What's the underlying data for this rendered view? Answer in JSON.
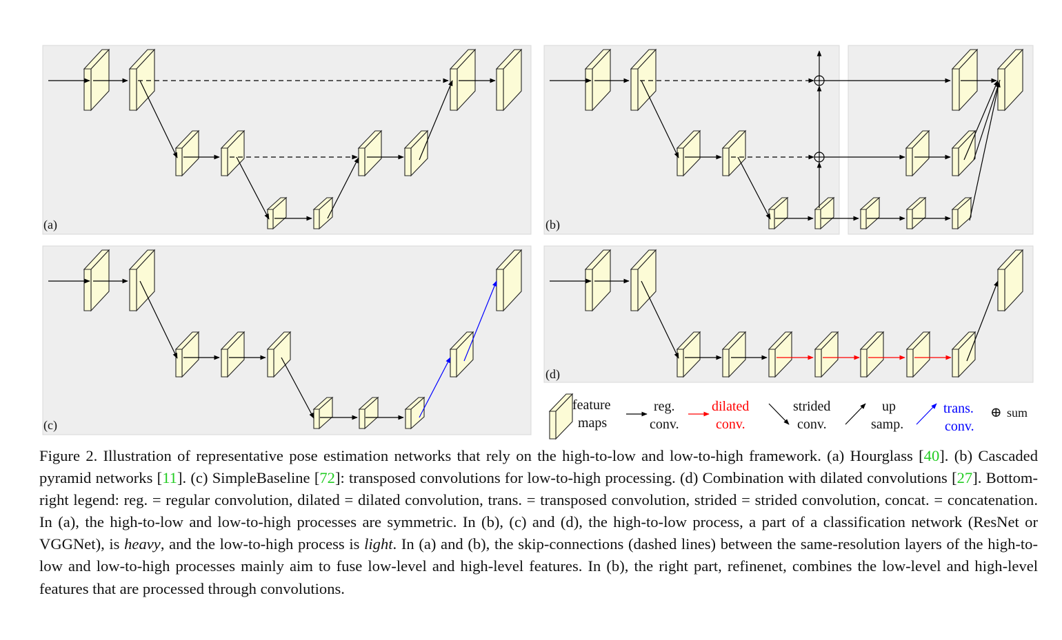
{
  "panels": [
    {
      "label": "(a)"
    },
    {
      "label": "(b)"
    },
    {
      "label": "(c)"
    },
    {
      "label": "(d)"
    }
  ],
  "legend": {
    "feature_maps": [
      "feature",
      "maps"
    ],
    "reg_conv": [
      "reg.",
      "conv."
    ],
    "dilated_conv": [
      "dilated",
      "conv."
    ],
    "strided_conv": [
      "strided",
      "conv."
    ],
    "up_samp": [
      "up",
      "samp."
    ],
    "trans_conv": [
      "trans.",
      "conv."
    ],
    "sum": "sum",
    "sum_symbol": "⊕"
  },
  "colors": {
    "panel_bg": "#eeeeee",
    "feature_map_fill": "#fcfbd6",
    "dilated": "#ff0000",
    "trans": "#0000ff",
    "citation": "#22cc22"
  },
  "caption": {
    "t1": "Figure 2. Illustration of representative pose estimation networks that rely on the high-to-low and low-to-high framework. (a) Hourglass [",
    "c1": "40",
    "t2": "]. (b) Cascaded pyramid networks [",
    "c2": "11",
    "t3": "]. (c) SimpleBaseline [",
    "c3": "72",
    "t4": "]: transposed convolutions for low-to-high processing. (d) Combination with dilated convolutions [",
    "c4": "27",
    "t5": "]. Bottom-right legend: reg. = regular convolution, dilated = dilated convolution, trans. = transposed convolution, strided = strided convolution, concat. = concatenation. In (a), the high-to-low and low-to-high processes are symmetric. In (b), (c) and (d), the high-to-low process, a part of a classification network (ResNet or VGGNet), is ",
    "heavy": "heavy",
    "t6": ", and the low-to-high process is ",
    "light": "light",
    "t7": ". In (a) and (b), the skip-connections (dashed lines) between the same-resolution layers of the high-to-low and low-to-high processes mainly aim to fuse low-level and high-level features. In (b), the right part, refinenet, combines the low-level and high-level features that are processed through convolutions."
  }
}
